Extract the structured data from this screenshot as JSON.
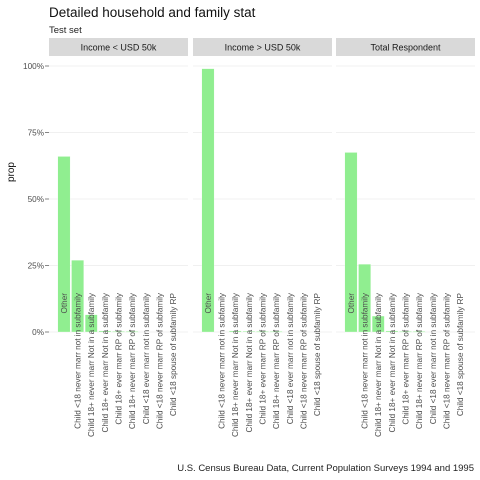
{
  "header": {
    "title": "Detailed household and family stat",
    "subtitle": "Test set"
  },
  "footer": {
    "caption": "U.S. Census Bureau Data, Current Population Surveys 1994 and 1995"
  },
  "colors": {
    "bar": "#90ee90",
    "strip_background": "#d9d9d9",
    "gridline": "#ebebeb",
    "tick_text": "#4d4d4d"
  },
  "chart_data": {
    "type": "bar",
    "facet_by": "income group",
    "ylabel": "prop",
    "xlabel": "",
    "ylim": [
      0,
      1
    ],
    "y_ticks": [
      0,
      0.25,
      0.5,
      0.75,
      1.0
    ],
    "y_tick_labels": [
      "0%",
      "25%",
      "50%",
      "75%",
      "100%"
    ],
    "grid": true,
    "panels": [
      {
        "strip": "Income < USD 50k",
        "categories": [
          "Other",
          "Child <18 never marr not in subfamily",
          "Child 18+ never marr Not in a subfamily",
          "Child 18+ ever marr Not in a subfamily",
          "Child 18+ ever marr RP of subfamily",
          "Child 18+ never marr RP of subfamily",
          "Child <18 ever marr not in subfamily",
          "Child <18 never marr RP of subfamily",
          "Child <18 spouse of subfamily RP"
        ],
        "values": [
          0.66,
          0.27,
          0.065,
          0.004,
          0.002,
          0.002,
          0.0,
          0.0,
          0.0
        ]
      },
      {
        "strip": "Income > USD 50k",
        "categories": [
          "Other",
          "Child <18 never marr not in subfamily",
          "Child 18+ never marr Not in a subfamily",
          "Child 18+ ever marr Not in a subfamily",
          "Child 18+ ever marr RP of subfamily",
          "Child 18+ never marr RP of subfamily",
          "Child <18 ever marr not in subfamily",
          "Child <18 never marr RP of subfamily",
          "Child <18 spouse of subfamily RP"
        ],
        "values": [
          0.99,
          0.0,
          0.004,
          0.003,
          0.002,
          0.002,
          0.0,
          0.0,
          0.0
        ]
      },
      {
        "strip": "Total Respondent",
        "categories": [
          "Other",
          "Child <18 never marr not in subfamily",
          "Child 18+ never marr Not in a subfamily",
          "Child 18+ ever marr Not in a subfamily",
          "Child 18+ ever marr RP of subfamily",
          "Child 18+ never marr RP of subfamily",
          "Child <18 ever marr not in subfamily",
          "Child <18 never marr RP of subfamily",
          "Child <18 spouse of subfamily RP"
        ],
        "values": [
          0.675,
          0.255,
          0.06,
          0.004,
          0.002,
          0.002,
          0.0,
          0.0,
          0.0
        ]
      }
    ]
  }
}
